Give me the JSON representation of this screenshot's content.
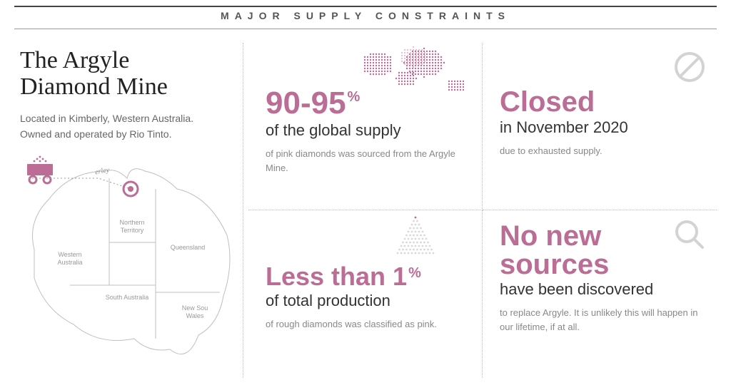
{
  "header": {
    "title": "MAJOR SUPPLY CONSTRAINTS"
  },
  "colors": {
    "accent": "#bb6d95",
    "text_dark": "#333333",
    "text_mid": "#666666",
    "text_light": "#888888",
    "rule_dark": "#444444",
    "dotted_border": "#bbbbbb",
    "icon_gray": "#cdcdcd",
    "bg": "#ffffff"
  },
  "mine": {
    "title_l1": "The Argyle",
    "title_l2": "Diamond Mine",
    "sub_l1": "Located in Kimberly, Western Australia.",
    "sub_l2": "Owned and operated by Rio Tinto."
  },
  "map": {
    "regions": {
      "wa": "Western Australia",
      "nt": "Northern Territory",
      "qld": "Queensland",
      "sa": "South Australia",
      "nsw": "New South Wales",
      "kimberley": "Kimberley"
    },
    "marker_color": "#bb6d95",
    "region_stroke": "#bfbfbf",
    "label_color": "#999999"
  },
  "cells": {
    "c1": {
      "stat": "90-95",
      "pct": "%",
      "sub_dark": "of the global supply",
      "sub_light": "of pink diamonds was sourced from the Argyle Mine.",
      "dot_color_dark": "#bb6d95",
      "dot_color_light": "#e2c3d3"
    },
    "c2": {
      "stat": "Closed",
      "sub_dark": "in November 2020",
      "sub_light": "due to exhausted supply.",
      "icon": "prohibit-icon"
    },
    "c3": {
      "stat": "Less than 1",
      "pct": "%",
      "sub_dark": "of total production",
      "sub_light": "of rough diamonds was classified as pink.",
      "dot_color_dark": "#bb6d95",
      "dot_color_light": "#d9d9d9"
    },
    "c4": {
      "stat_l1": "No new",
      "stat_l2": "sources",
      "sub_dark": "have been discovered",
      "sub_light": "to replace Argyle. It is unlikely this will happen in our lifetime, if at all.",
      "icon": "magnifier-icon"
    }
  }
}
